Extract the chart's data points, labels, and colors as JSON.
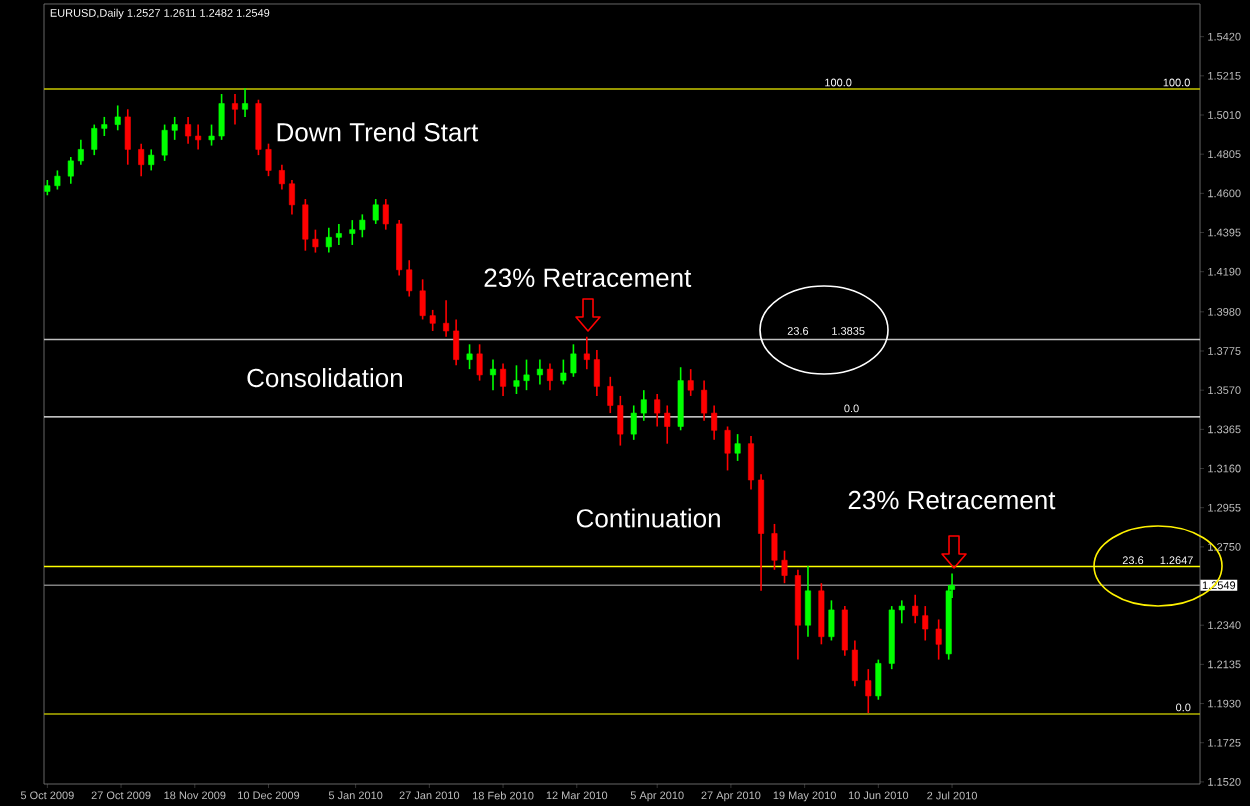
{
  "chart_data": {
    "type": "candlestick",
    "title": "EURUSD,Daily  1.2527 1.2611 1.2482 1.2549",
    "x": [
      "2009-10-05",
      "2009-10-08",
      "2009-10-12",
      "2009-10-15",
      "2009-10-19",
      "2009-10-22",
      "2009-10-26",
      "2009-10-29",
      "2009-11-02",
      "2009-11-05",
      "2009-11-09",
      "2009-11-12",
      "2009-11-16",
      "2009-11-19",
      "2009-11-23",
      "2009-11-26",
      "2009-11-30",
      "2009-12-03",
      "2009-12-07",
      "2009-12-10",
      "2009-12-14",
      "2009-12-17",
      "2009-12-21",
      "2009-12-24",
      "2009-12-28",
      "2009-12-31",
      "2010-01-04",
      "2010-01-07",
      "2010-01-11",
      "2010-01-14",
      "2010-01-18",
      "2010-01-21",
      "2010-01-25",
      "2010-01-28",
      "2010-02-01",
      "2010-02-04",
      "2010-02-08",
      "2010-02-11",
      "2010-02-15",
      "2010-02-18",
      "2010-02-22",
      "2010-02-25",
      "2010-03-01",
      "2010-03-04",
      "2010-03-08",
      "2010-03-11",
      "2010-03-15",
      "2010-03-18",
      "2010-03-22",
      "2010-03-25",
      "2010-03-29",
      "2010-04-01",
      "2010-04-05",
      "2010-04-08",
      "2010-04-12",
      "2010-04-15",
      "2010-04-19",
      "2010-04-22",
      "2010-04-26",
      "2010-04-29",
      "2010-05-03",
      "2010-05-06",
      "2010-05-10",
      "2010-05-13",
      "2010-05-17",
      "2010-05-20",
      "2010-05-24",
      "2010-05-27",
      "2010-05-31",
      "2010-06-03",
      "2010-06-07",
      "2010-06-10",
      "2010-06-14",
      "2010-06-17",
      "2010-06-21",
      "2010-06-24",
      "2010-06-28",
      "2010-07-01",
      "2010-07-02"
    ],
    "ohlc": [
      [
        1.461,
        1.467,
        1.459,
        1.464
      ],
      [
        1.464,
        1.472,
        1.462,
        1.469
      ],
      [
        1.469,
        1.479,
        1.465,
        1.477
      ],
      [
        1.477,
        1.488,
        1.475,
        1.483
      ],
      [
        1.483,
        1.496,
        1.48,
        1.494
      ],
      [
        1.494,
        1.5,
        1.49,
        1.496
      ],
      [
        1.496,
        1.506,
        1.493,
        1.5
      ],
      [
        1.5,
        1.504,
        1.475,
        1.483
      ],
      [
        1.483,
        1.486,
        1.469,
        1.475
      ],
      [
        1.475,
        1.483,
        1.472,
        1.48
      ],
      [
        1.48,
        1.496,
        1.477,
        1.493
      ],
      [
        1.493,
        1.5,
        1.488,
        1.496
      ],
      [
        1.496,
        1.5,
        1.486,
        1.49
      ],
      [
        1.49,
        1.496,
        1.483,
        1.488
      ],
      [
        1.488,
        1.496,
        1.485,
        1.49
      ],
      [
        1.49,
        1.512,
        1.488,
        1.507
      ],
      [
        1.507,
        1.512,
        1.496,
        1.504
      ],
      [
        1.504,
        1.515,
        1.5,
        1.507
      ],
      [
        1.507,
        1.509,
        1.48,
        1.483
      ],
      [
        1.483,
        1.486,
        1.469,
        1.472
      ],
      [
        1.472,
        1.475,
        1.462,
        1.465
      ],
      [
        1.465,
        1.467,
        1.449,
        1.454
      ],
      [
        1.454,
        1.457,
        1.43,
        1.436
      ],
      [
        1.436,
        1.441,
        1.429,
        1.432
      ],
      [
        1.432,
        1.442,
        1.429,
        1.437
      ],
      [
        1.437,
        1.444,
        1.433,
        1.439
      ],
      [
        1.439,
        1.446,
        1.433,
        1.441
      ],
      [
        1.441,
        1.449,
        1.437,
        1.446
      ],
      [
        1.446,
        1.457,
        1.444,
        1.454
      ],
      [
        1.454,
        1.457,
        1.441,
        1.444
      ],
      [
        1.444,
        1.446,
        1.417,
        1.42
      ],
      [
        1.42,
        1.425,
        1.406,
        1.409
      ],
      [
        1.409,
        1.415,
        1.394,
        1.396
      ],
      [
        1.396,
        1.399,
        1.388,
        1.392
      ],
      [
        1.392,
        1.404,
        1.385,
        1.388
      ],
      [
        1.388,
        1.394,
        1.37,
        1.373
      ],
      [
        1.373,
        1.381,
        1.368,
        1.376
      ],
      [
        1.376,
        1.381,
        1.362,
        1.365
      ],
      [
        1.365,
        1.373,
        1.357,
        1.368
      ],
      [
        1.368,
        1.371,
        1.354,
        1.359
      ],
      [
        1.359,
        1.37,
        1.355,
        1.362
      ],
      [
        1.362,
        1.373,
        1.357,
        1.365
      ],
      [
        1.365,
        1.373,
        1.36,
        1.368
      ],
      [
        1.368,
        1.371,
        1.357,
        1.362
      ],
      [
        1.362,
        1.373,
        1.36,
        1.366
      ],
      [
        1.366,
        1.381,
        1.364,
        1.376
      ],
      [
        1.376,
        1.385,
        1.368,
        1.373
      ],
      [
        1.373,
        1.378,
        1.354,
        1.359
      ],
      [
        1.359,
        1.364,
        1.345,
        1.349
      ],
      [
        1.349,
        1.354,
        1.328,
        1.334
      ],
      [
        1.334,
        1.349,
        1.331,
        1.345
      ],
      [
        1.345,
        1.357,
        1.341,
        1.352
      ],
      [
        1.352,
        1.355,
        1.338,
        1.345
      ],
      [
        1.345,
        1.349,
        1.329,
        1.338
      ],
      [
        1.338,
        1.369,
        1.336,
        1.362
      ],
      [
        1.362,
        1.368,
        1.354,
        1.357
      ],
      [
        1.357,
        1.362,
        1.341,
        1.345
      ],
      [
        1.345,
        1.349,
        1.331,
        1.336
      ],
      [
        1.336,
        1.338,
        1.315,
        1.324
      ],
      [
        1.324,
        1.334,
        1.32,
        1.329
      ],
      [
        1.329,
        1.333,
        1.305,
        1.31
      ],
      [
        1.31,
        1.313,
        1.252,
        1.282
      ],
      [
        1.282,
        1.287,
        1.263,
        1.268
      ],
      [
        1.268,
        1.273,
        1.256,
        1.26
      ],
      [
        1.26,
        1.263,
        1.216,
        1.234
      ],
      [
        1.234,
        1.265,
        1.228,
        1.252
      ],
      [
        1.252,
        1.256,
        1.224,
        1.228
      ],
      [
        1.228,
        1.247,
        1.226,
        1.242
      ],
      [
        1.242,
        1.244,
        1.218,
        1.221
      ],
      [
        1.221,
        1.226,
        1.202,
        1.205
      ],
      [
        1.205,
        1.211,
        1.188,
        1.197
      ],
      [
        1.197,
        1.216,
        1.195,
        1.214
      ],
      [
        1.214,
        1.244,
        1.211,
        1.242
      ],
      [
        1.242,
        1.247,
        1.235,
        1.244
      ],
      [
        1.244,
        1.25,
        1.235,
        1.239
      ],
      [
        1.239,
        1.244,
        1.226,
        1.232
      ],
      [
        1.232,
        1.237,
        1.216,
        1.224
      ],
      [
        1.219,
        1.255,
        1.216,
        1.252
      ],
      [
        1.2527,
        1.2611,
        1.2482,
        1.2549
      ]
    ],
    "colors": [
      "#00ff00",
      "#00ff00",
      "#00ff00",
      "#00ff00",
      "#00ff00",
      "#00ff00",
      "#00ff00",
      "#ff0000",
      "#ff0000",
      "#00ff00",
      "#00ff00",
      "#00ff00",
      "#ff0000",
      "#ff0000",
      "#00ff00",
      "#00ff00",
      "#ff0000",
      "#00ff00",
      "#ff0000",
      "#ff0000",
      "#ff0000",
      "#ff0000",
      "#ff0000",
      "#ff0000",
      "#00ff00",
      "#00ff00",
      "#00ff00",
      "#00ff00",
      "#00ff00",
      "#ff0000",
      "#ff0000",
      "#ff0000",
      "#ff0000",
      "#ff0000",
      "#ff0000",
      "#ff0000",
      "#00ff00",
      "#ff0000",
      "#00ff00",
      "#ff0000",
      "#00ff00",
      "#00ff00",
      "#00ff00",
      "#ff0000",
      "#00ff00",
      "#00ff00",
      "#ff0000",
      "#ff0000",
      "#ff0000",
      "#ff0000",
      "#00ff00",
      "#00ff00",
      "#ff0000",
      "#ff0000",
      "#00ff00",
      "#ff0000",
      "#ff0000",
      "#ff0000",
      "#ff0000",
      "#00ff00",
      "#ff0000",
      "#ff0000",
      "#ff0000",
      "#ff0000",
      "#ff0000",
      "#00ff00",
      "#ff0000",
      "#00ff00",
      "#ff0000",
      "#ff0000",
      "#ff0000",
      "#00ff00",
      "#00ff00",
      "#00ff00",
      "#ff0000",
      "#ff0000",
      "#ff0000",
      "#00ff00",
      "#00ff00"
    ],
    "xlim": [
      "2009-10-04",
      "2010-09-14"
    ],
    "xticks": [
      {
        "value": "2009-10-05",
        "label": "5 Oct 2009"
      },
      {
        "value": "2009-10-27",
        "label": "27 Oct 2009"
      },
      {
        "value": "2009-11-18",
        "label": "18 Nov 2009"
      },
      {
        "value": "2009-12-10",
        "label": "10 Dec 2009"
      },
      {
        "value": "2010-01-05",
        "label": "5 Jan 2010"
      },
      {
        "value": "2010-01-27",
        "label": "27 Jan 2010"
      },
      {
        "value": "2010-02-18",
        "label": "18 Feb 2010"
      },
      {
        "value": "2010-03-12",
        "label": "12 Mar 2010"
      },
      {
        "value": "2010-04-05",
        "label": "5 Apr 2010"
      },
      {
        "value": "2010-04-27",
        "label": "27 Apr 2010"
      },
      {
        "value": "2010-05-19",
        "label": "19 May 2010"
      },
      {
        "value": "2010-06-10",
        "label": "10 Jun 2010"
      },
      {
        "value": "2010-07-02",
        "label": "2 Jul 2010"
      }
    ],
    "ylim": [
      1.1509,
      1.5591
    ],
    "yticks": [
      {
        "value": 1.542,
        "label": "1.5420"
      },
      1.5215,
      {
        "value": 1.501,
        "label": "1.5010"
      },
      1.4805,
      {
        "value": 1.46,
        "label": "1.4600"
      },
      1.4395,
      {
        "value": 1.419,
        "label": "1.4190"
      },
      {
        "value": 1.398,
        "label": "1.3980"
      },
      1.3775,
      {
        "value": 1.357,
        "label": "1.3570"
      },
      1.3365,
      {
        "value": 1.316,
        "label": "1.3160"
      },
      1.2955,
      {
        "value": 1.275,
        "label": "1.2750"
      },
      {
        "value": 1.234,
        "label": "1.2340"
      },
      1.2135,
      {
        "value": 1.193,
        "label": "1.1930"
      },
      1.1725,
      {
        "value": 1.152,
        "label": "1.1520"
      }
    ],
    "ref_lines": [
      {
        "axis": "y",
        "value": 1.5146,
        "color": "#c8c800"
      },
      {
        "axis": "y",
        "value": 1.3835,
        "color": "#c0c0c0"
      },
      {
        "axis": "y",
        "value": 1.343,
        "color": "#ffffff"
      },
      {
        "axis": "y",
        "value": 1.2647,
        "color": "#ffff00"
      },
      {
        "axis": "y",
        "value": 1.1875,
        "color": "#b4b400"
      },
      {
        "axis": "y",
        "value": 1.2549,
        "label": "1.2549",
        "color": "#808080"
      }
    ],
    "annotations": [
      "Down Trend Start",
      "23% Retracement",
      "Consolidation",
      "Continuation",
      "23% Retracement",
      {
        "text": "100.0",
        "x": "2010-05-29",
        "y": 1.518
      },
      {
        "text": "100.0",
        "x": "2010-09-07",
        "y": 1.518
      },
      {
        "text": "23.6",
        "x": "2010-05-17",
        "y": 1.388
      },
      {
        "text": "1.3835",
        "x": "2010-06-01",
        "y": 1.388
      },
      {
        "text": "0.0",
        "x": "2010-06-02",
        "y": 1.3475
      },
      {
        "text": "23.6",
        "x": "2010-08-25",
        "y": 1.268
      },
      {
        "text": "1.2647",
        "x": "2010-09-07",
        "y": 1.268
      },
      {
        "text": "0.0",
        "x": "2010-09-09",
        "y": 1.191
      }
    ]
  }
}
